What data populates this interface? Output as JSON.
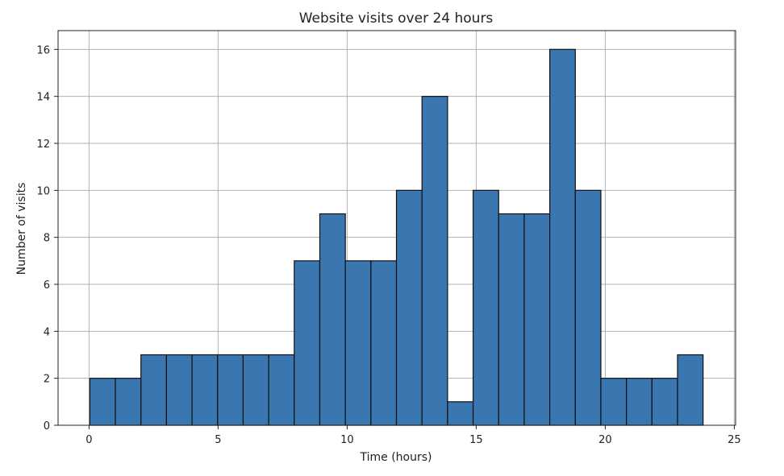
{
  "chart_data": {
    "type": "bar",
    "title": "Website visits over 24 hours",
    "xlabel": "Time (hours)",
    "ylabel": "Number of visits",
    "xlim": [
      -1.2,
      25.05
    ],
    "ylim": [
      0,
      16.8
    ],
    "xticks": [
      0,
      5,
      10,
      15,
      20,
      25
    ],
    "yticks": [
      0,
      2,
      4,
      6,
      8,
      10,
      12,
      14,
      16
    ],
    "grid": true,
    "bin_start": 0.03,
    "bin_width": 0.99,
    "values": [
      2,
      2,
      3,
      3,
      3,
      3,
      3,
      3,
      7,
      9,
      7,
      7,
      10,
      14,
      1,
      10,
      9,
      9,
      16,
      10,
      2,
      2,
      2,
      3
    ],
    "bar_color": "#3a76b0",
    "edge_color": "#111111"
  }
}
